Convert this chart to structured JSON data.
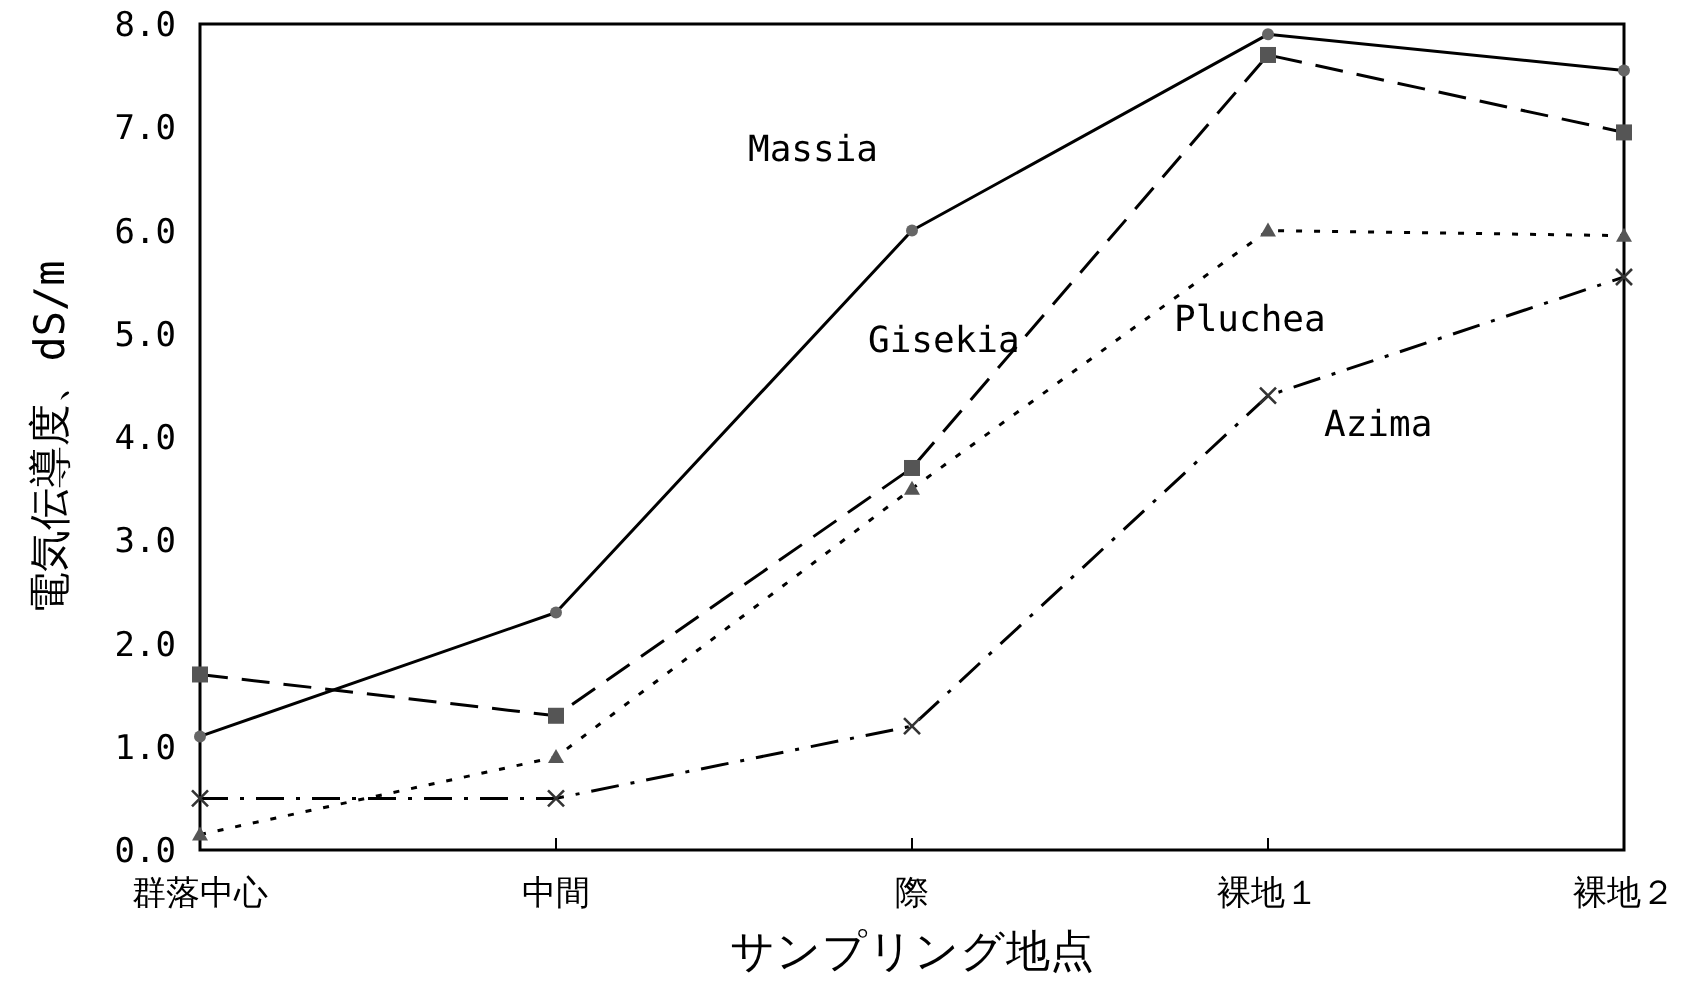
{
  "chart_data": {
    "type": "line",
    "categories": [
      "群落中心",
      "中間",
      "際",
      "裸地１",
      "裸地２"
    ],
    "xlabel": "サンプリング地点",
    "ylabel": "電気伝導度、dS/m",
    "ylim": [
      0,
      8
    ],
    "yticks": [
      {
        "value": 0,
        "label": "0.0"
      },
      {
        "value": 1,
        "label": "1.0"
      },
      {
        "value": 2,
        "label": "2.0"
      },
      {
        "value": 3,
        "label": "3.0"
      },
      {
        "value": 4,
        "label": "4.0"
      },
      {
        "value": 5,
        "label": "5.0"
      },
      {
        "value": 6,
        "label": "6.0"
      },
      {
        "value": 7,
        "label": "7.0"
      },
      {
        "value": 8,
        "label": "8.0"
      }
    ],
    "grid": false,
    "legend": false,
    "series": [
      {
        "name": "Massia",
        "color": "#000000",
        "marker": "circle",
        "line_style": "solid",
        "values": [
          1.1,
          2.3,
          6.0,
          7.9,
          7.55
        ]
      },
      {
        "name": "Gisekia",
        "color": "#000000",
        "marker": "square",
        "line_style": "dashed",
        "values": [
          1.7,
          1.3,
          3.7,
          7.7,
          6.95
        ]
      },
      {
        "name": "Pluchea",
        "color": "#000000",
        "marker": "triangle",
        "line_style": "dotted",
        "values": [
          0.15,
          0.9,
          3.5,
          6.0,
          5.95
        ]
      },
      {
        "name": "Azima",
        "color": "#000000",
        "marker": "cross",
        "line_style": "dashdot",
        "values": [
          0.5,
          0.5,
          1.2,
          4.4,
          5.55
        ]
      }
    ]
  }
}
